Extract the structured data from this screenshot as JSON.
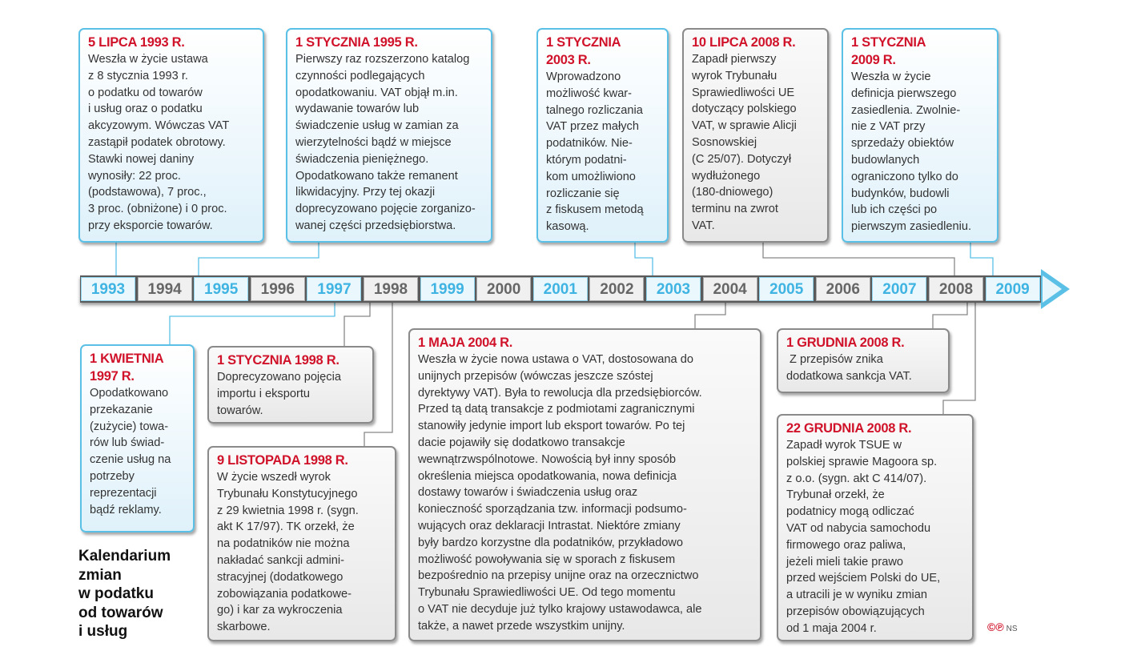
{
  "title": "Kalendarium\nzmian\nw podatku\nod towarów\ni usług",
  "colors": {
    "accent_red": "#d0132a",
    "blue": "#5bc0e6",
    "gray": "#8a8a8a"
  },
  "timeline": {
    "years": [
      "1993",
      "1994",
      "1995",
      "1996",
      "1997",
      "1998",
      "1999",
      "2000",
      "2001",
      "2002",
      "2003",
      "2004",
      "2005",
      "2006",
      "2007",
      "2008",
      "2009"
    ],
    "highlighted": [
      "1993",
      "1995",
      "1997",
      "1999",
      "2001",
      "2003",
      "2005",
      "2007",
      "2009"
    ]
  },
  "events": {
    "e1993": {
      "date": "5 LIPCA 1993 R.",
      "text": "Weszła w życie ustawa\nz 8 stycznia 1993 r.\no podatku od towarów\ni usług oraz o podatku\nakcyzowym. Wówczas VAT\nzastąpił podatek obrotowy.\nStawki nowej daniny\nwynosiły: 22 proc.\n(podstawowa), 7 proc.,\n3 proc. (obniżone) i 0 proc.\nprzy eksporcie towarów."
    },
    "e1995": {
      "date": "1 STYCZNIA 1995 R.",
      "text": "Pierwszy raz rozszerzono katalog\nczynności podlegających\nopodatkowaniu. VAT objął m.in.\nwydawanie towarów lub\nświadczenie usług w zamian za\nwierzytelności bądź w miejsce\nświadczenia pieniężnego.\nOpodatkowano także remanent\nlikwidacyjny. Przy tej okazji\ndoprecyzowano pojęcie zorganizo-\nwanej części przedsiębiorstwa."
    },
    "e2003": {
      "date": "1 STYCZNIA\n2003 R.",
      "text": "Wprowadzono\nmożliwość kwar-\ntalnego rozliczania\nVAT przez małych\npodatników. Nie-\nktórym podatni-\nkom umożliwiono\nrozliczanie się\nz fiskusem metodą\nkasową."
    },
    "e2008a": {
      "date": "10 LIPCA 2008 R.",
      "text": "Zapadł pierwszy\nwyrok Trybunału\nSprawiedliwości UE\ndotyczący polskiego\nVAT, w sprawie Alicji\nSosnowskiej\n(C 25/07). Dotyczył\nwydłużonego\n(180-dniowego)\nterminu na zwrot\nVAT."
    },
    "e2009": {
      "date": "1 STYCZNIA\n2009 R.",
      "text": "Weszła w życie\ndefinicja pierwszego\nzasiedlenia. Zwolnie-\nnie z VAT przy\nsprzedaży obiektów\nbudowlanych\nograniczono tylko do\nbudynków, budowli\nlub ich części po\npierwszym zasiedleniu."
    },
    "e1997": {
      "date": "1 KWIETNIA\n1997 R.",
      "text": "Opodatkowano\nprzekazanie\n(zużycie) towa-\nrów lub świad-\nczenie usług na\npotrzeby\nreprezentacji\nbądź reklamy."
    },
    "e1998a": {
      "date": "1 STYCZNIA 1998 R.",
      "text": "Doprecyzowano pojęcia\nimportu i eksportu\ntowarów."
    },
    "e1998b": {
      "date": "9 LISTOPADA 1998 R.",
      "text": "W życie wszedł wyrok\nTrybunału Konstytucyjnego\nz 29 kwietnia 1998 r. (sygn.\nakt K 17/97). TK orzekł, że\nna podatników nie można\nnakładać sankcji admini-\nstracyjnej (dodatkowego\nzobowiązania podatkowe-\ngo) i kar za wykroczenia\nskarbowe."
    },
    "e2004": {
      "date": "1 MAJA 2004 R.",
      "text": "Weszła w życie nowa ustawa o VAT, dostosowana do\nunijnych przepisów (wówczas jeszcze szóstej\ndyrektywy VAT). Była to rewolucja dla przedsiębiorców.\nPrzed tą datą transakcje z podmiotami zagranicznymi\nstanowiły jedynie import lub eksport towarów. Po tej\ndacie pojawiły się dodatkowo transakcje\nwewnątrzwspólnotowe. Nowością był inny sposób\nokreślenia miejsca opodatkowania, nowa definicja\ndostawy towarów i świadczenia usług oraz\nkonieczność sporządzania tzw. informacji podsumo-\nwujących oraz deklaracji Intrastat. Niektóre zmiany\nbyły bardzo korzystne dla podatników, przykładowo\nmożliwość powoływania się w sporach z fiskusem\nbezpośrednio na przepisy unijne oraz na orzecznictwo\nTrybunału Sprawiedliwości UE. Od tego momentu\no VAT nie decyduje już tylko krajowy ustawodawca, ale\ntakże, a nawet przede wszystkim unijny."
    },
    "e2008b": {
      "date": "1 GRUDNIA 2008 R.",
      "text": " Z przepisów znika\ndodatkowa sankcja VAT."
    },
    "e2008c": {
      "date": "22 GRUDNIA 2008 R.",
      "text": "Zapadł wyrok TSUE w\npolskiej sprawie Magoora sp.\nz o.o. (sygn. akt C 414/07).\nTrybunał orzekł, że\npodatnicy mogą odliczać\nVAT od nabycia samochodu\nfirmowego oraz paliwa,\njeżeli mieli takie prawo\nprzed wejściem Polski do UE,\na utracili je w wyniku zmian\nprzepisów obowiązujących\nod 1 maja 2004 r."
    }
  },
  "logo": {
    "mark": "©℗",
    "initials": "NS"
  }
}
